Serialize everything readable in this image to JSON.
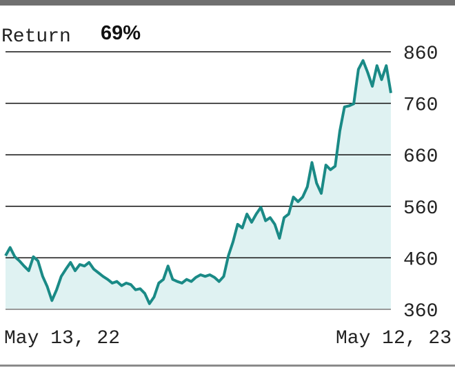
{
  "chart_data": {
    "type": "area",
    "title": "Return",
    "annotation": "69%",
    "categories": [
      "May 13, 22",
      null,
      null,
      null,
      null,
      null,
      null,
      null,
      null,
      null,
      null,
      null,
      null,
      null,
      null,
      null,
      null,
      null,
      null,
      null,
      null,
      null,
      null,
      null,
      null,
      null,
      null,
      null,
      null,
      null,
      null,
      null,
      null,
      null,
      null,
      null,
      null,
      null,
      null,
      null,
      null,
      null,
      null,
      null,
      null,
      null,
      null,
      null,
      null,
      null,
      null,
      null,
      null,
      null,
      null,
      null,
      null,
      null,
      null,
      null,
      null,
      null,
      null,
      null,
      null,
      null,
      null,
      null,
      null,
      null,
      null,
      null,
      null,
      null,
      null,
      null,
      null,
      null,
      null,
      null,
      null,
      null,
      null,
      "May 12, 23"
    ],
    "values": [
      464,
      480,
      462,
      454,
      444,
      435,
      462,
      454,
      424,
      404,
      377,
      398,
      424,
      438,
      451,
      435,
      447,
      444,
      451,
      438,
      431,
      424,
      418,
      411,
      414,
      406,
      411,
      408,
      398,
      400,
      391,
      371,
      384,
      411,
      418,
      444,
      418,
      414,
      411,
      418,
      414,
      422,
      427,
      424,
      427,
      422,
      414,
      424,
      464,
      491,
      525,
      518,
      545,
      529,
      545,
      558,
      532,
      538,
      525,
      498,
      538,
      545,
      578,
      569,
      578,
      598,
      645,
      605,
      585,
      640,
      631,
      638,
      706,
      753,
      755,
      759,
      826,
      843,
      820,
      793,
      833,
      806,
      833,
      780
    ],
    "color": "#1a8a86",
    "fill": "#dff2f2",
    "ylim": [
      360,
      860
    ],
    "yticks": [
      360,
      460,
      560,
      660,
      760,
      860
    ],
    "grid": true
  }
}
